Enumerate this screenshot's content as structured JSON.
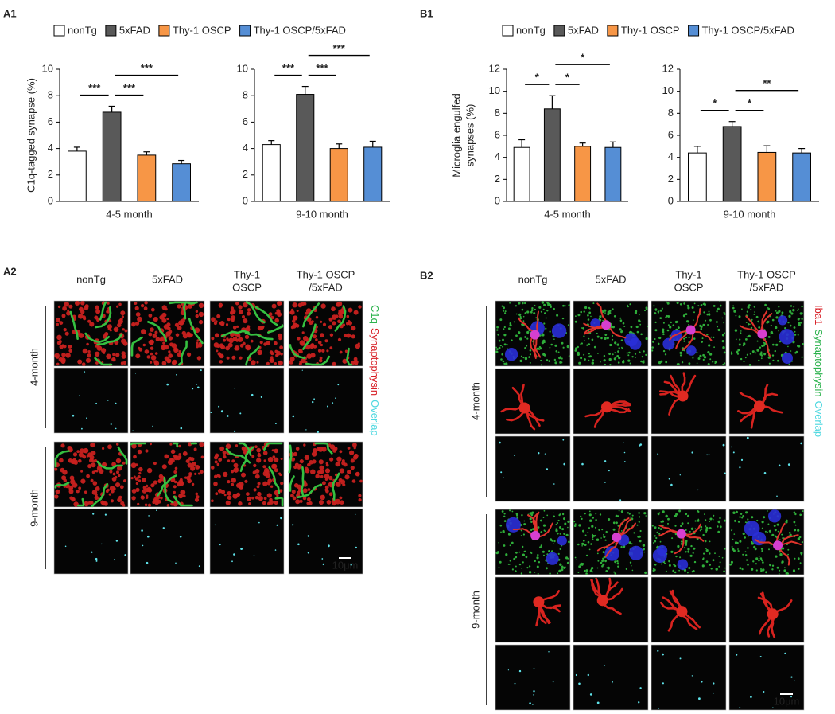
{
  "chart_data": [
    {
      "type": "bar",
      "panel_label": "A1",
      "ylabel": [
        "C1q-tagged synapse (%)"
      ],
      "categories": [
        "4-5 month",
        "9-10 month"
      ],
      "series": [
        {
          "name": "nonTg",
          "color": "#ffffff",
          "values": [
            3.8,
            4.3
          ],
          "errors": [
            0.3,
            0.3
          ]
        },
        {
          "name": "5xFAD",
          "color": "#595959",
          "values": [
            6.75,
            8.1
          ],
          "errors": [
            0.45,
            0.6
          ]
        },
        {
          "name": "Thy-1 OSCP",
          "color": "#f79646",
          "values": [
            3.5,
            4.0
          ],
          "errors": [
            0.25,
            0.35
          ]
        },
        {
          "name": "Thy-1 OSCP/5xFAD",
          "color": "#558ed5",
          "values": [
            2.85,
            4.1
          ],
          "errors": [
            0.25,
            0.45
          ]
        }
      ],
      "ylim": [
        0,
        10
      ],
      "yticks": [
        0,
        2,
        4,
        6,
        8,
        10
      ],
      "edge_color": "#000000",
      "significance": [
        [
          {
            "between": [
              "nonTg",
              "5xFAD"
            ],
            "label": "***"
          },
          {
            "between": [
              "5xFAD",
              "Thy-1 OSCP"
            ],
            "label": "***"
          },
          {
            "between": [
              "5xFAD",
              "Thy-1 OSCP/5xFAD"
            ],
            "label": "***"
          }
        ],
        [
          {
            "between": [
              "nonTg",
              "5xFAD"
            ],
            "label": "***"
          },
          {
            "between": [
              "5xFAD",
              "Thy-1 OSCP"
            ],
            "label": "***"
          },
          {
            "between": [
              "5xFAD",
              "Thy-1 OSCP/5xFAD"
            ],
            "label": "***"
          }
        ]
      ]
    },
    {
      "type": "bar",
      "panel_label": "B1",
      "ylabel": [
        "Microglia engulfed",
        "synapses (%)"
      ],
      "categories": [
        "4-5 month",
        "9-10 month"
      ],
      "series": [
        {
          "name": "nonTg",
          "color": "#ffffff",
          "values": [
            4.9,
            4.4
          ],
          "errors": [
            0.7,
            0.6
          ]
        },
        {
          "name": "5xFAD",
          "color": "#595959",
          "values": [
            8.4,
            6.8
          ],
          "errors": [
            1.2,
            0.45
          ]
        },
        {
          "name": "Thy-1 OSCP",
          "color": "#f79646",
          "values": [
            5.0,
            4.45
          ],
          "errors": [
            0.3,
            0.6
          ]
        },
        {
          "name": "Thy-1 OSCP/5xFAD",
          "color": "#558ed5",
          "values": [
            4.9,
            4.4
          ],
          "errors": [
            0.5,
            0.4
          ]
        }
      ],
      "ylim": [
        0,
        12
      ],
      "yticks": [
        0,
        2,
        4,
        6,
        8,
        10,
        12
      ],
      "edge_color": "#000000",
      "significance": [
        [
          {
            "between": [
              "nonTg",
              "5xFAD"
            ],
            "label": "*"
          },
          {
            "between": [
              "5xFAD",
              "Thy-1 OSCP"
            ],
            "label": "*"
          },
          {
            "between": [
              "5xFAD",
              "Thy-1 OSCP/5xFAD"
            ],
            "label": "*"
          }
        ],
        [
          {
            "between": [
              "nonTg",
              "5xFAD"
            ],
            "label": "*"
          },
          {
            "between": [
              "5xFAD",
              "Thy-1 OSCP"
            ],
            "label": "*"
          },
          {
            "between": [
              "5xFAD",
              "Thy-1 OSCP/5xFAD"
            ],
            "label": "**"
          }
        ]
      ]
    }
  ],
  "image_panels": [
    {
      "panel_label": "A2",
      "columns": [
        [
          "nonTg"
        ],
        [
          "5xFAD"
        ],
        [
          "Thy-1",
          "OSCP"
        ],
        [
          "Thy-1 OSCP",
          "/5xFAD"
        ]
      ],
      "rows": [
        "4-month",
        "9-month"
      ],
      "channels": [
        {
          "text": "C1q",
          "color": "#2bb24c"
        },
        {
          "text": "Synaptophysin",
          "color": "#d81f26"
        },
        {
          "text": "Overlap",
          "color": "#4fd8e0"
        }
      ],
      "scale_bar": "10μm"
    },
    {
      "panel_label": "B2",
      "columns": [
        [
          "nonTg"
        ],
        [
          "5xFAD"
        ],
        [
          "Thy-1",
          "OSCP"
        ],
        [
          "Thy-1 OSCP",
          "/5xFAD"
        ]
      ],
      "rows": [
        "4-month",
        "9-month"
      ],
      "channels": [
        {
          "text": "Iba1",
          "color": "#d81f26"
        },
        {
          "text": "Synaptophysin",
          "color": "#2bb24c"
        },
        {
          "text": "Overlap",
          "color": "#4fd8e0"
        }
      ],
      "scale_bar": "10μm"
    }
  ]
}
